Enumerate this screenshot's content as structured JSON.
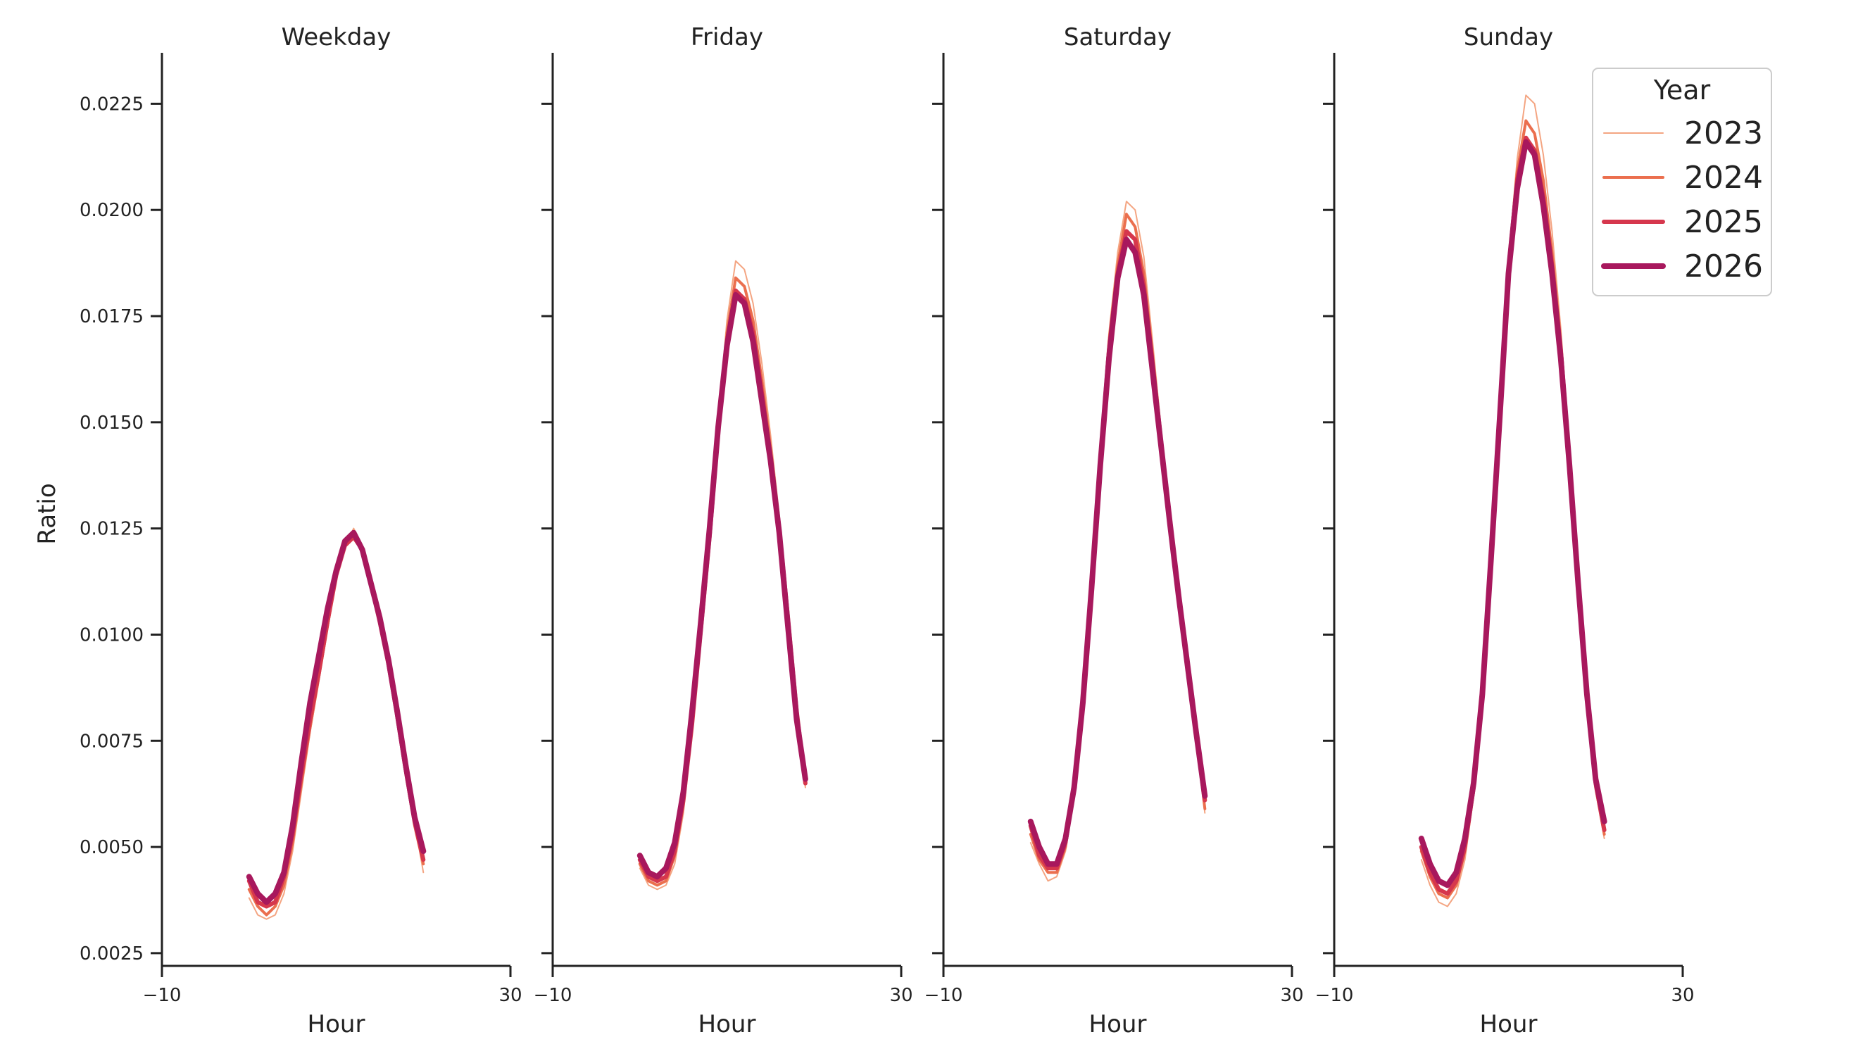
{
  "chart_data": {
    "type": "line",
    "ylabel": "Ratio",
    "xlabel": "Hour",
    "xlim": [
      -10,
      30
    ],
    "ylim": [
      0.0022,
      0.0237
    ],
    "xticks": [
      -10,
      30
    ],
    "yticks": [
      0.0025,
      0.005,
      0.0075,
      0.01,
      0.0125,
      0.015,
      0.0175,
      0.02,
      0.0225
    ],
    "ytick_labels": [
      "0.0025",
      "0.0050",
      "0.0075",
      "0.0100",
      "0.0125",
      "0.0150",
      "0.0175",
      "0.0200",
      "0.0225"
    ],
    "xtick_labels": [
      "−10",
      "30"
    ],
    "grid": false,
    "legend": {
      "title": "Year",
      "placement": "top-right",
      "entries": [
        "2023",
        "2024",
        "2025",
        "2026"
      ],
      "colors": [
        "#f4a582",
        "#eb6f4e",
        "#d6374d",
        "#a8185d"
      ],
      "widths": [
        2,
        4,
        6,
        8
      ]
    },
    "x": [
      0,
      1,
      2,
      3,
      4,
      5,
      6,
      7,
      8,
      9,
      10,
      11,
      12,
      13,
      14,
      15,
      16,
      17,
      18,
      19,
      20,
      21,
      22,
      23
    ],
    "panels": [
      {
        "title": "Weekday",
        "series": [
          {
            "name": "2023",
            "values": [
              0.0038,
              0.0034,
              0.0033,
              0.0034,
              0.0039,
              0.0049,
              0.0063,
              0.0077,
              0.0089,
              0.0101,
              0.0113,
              0.0121,
              0.0125,
              0.0121,
              0.0113,
              0.0104,
              0.0094,
              0.0081,
              0.0068,
              0.0056,
              0.0044
            ]
          },
          {
            "name": "2024",
            "values": [
              0.004,
              0.0036,
              0.0034,
              0.0036,
              0.0041,
              0.0051,
              0.0065,
              0.0078,
              0.009,
              0.0102,
              0.0114,
              0.0122,
              0.0124,
              0.012,
              0.0112,
              0.0103,
              0.0093,
              0.008,
              0.0067,
              0.0055,
              0.0046
            ]
          },
          {
            "name": "2025",
            "values": [
              0.0042,
              0.0037,
              0.0036,
              0.0037,
              0.0043,
              0.0053,
              0.0067,
              0.008,
              0.0091,
              0.0103,
              0.0114,
              0.0121,
              0.0123,
              0.012,
              0.0112,
              0.0103,
              0.0093,
              0.0081,
              0.0068,
              0.0056,
              0.0047
            ]
          },
          {
            "name": "2026",
            "values": [
              0.0043,
              0.0039,
              0.0037,
              0.0039,
              0.0044,
              0.0055,
              0.007,
              0.0084,
              0.0095,
              0.0106,
              0.0115,
              0.0122,
              0.0124,
              0.012,
              0.0112,
              0.0104,
              0.0094,
              0.0082,
              0.0069,
              0.0057,
              0.0049
            ]
          }
        ]
      },
      {
        "title": "Friday",
        "series": [
          {
            "name": "2023",
            "values": [
              0.0045,
              0.0041,
              0.004,
              0.0041,
              0.0046,
              0.0058,
              0.0077,
              0.01,
              0.0124,
              0.015,
              0.0174,
              0.0188,
              0.0186,
              0.0178,
              0.0164,
              0.0147,
              0.0128,
              0.0106,
              0.0083,
              0.0064
            ]
          },
          {
            "name": "2024",
            "values": [
              0.0046,
              0.0042,
              0.0041,
              0.0042,
              0.0048,
              0.006,
              0.0079,
              0.0101,
              0.0124,
              0.0149,
              0.0171,
              0.0184,
              0.0182,
              0.0174,
              0.016,
              0.0144,
              0.0126,
              0.0105,
              0.0082,
              0.0065
            ]
          },
          {
            "name": "2025",
            "values": [
              0.0047,
              0.0043,
              0.0042,
              0.0043,
              0.0049,
              0.0061,
              0.0079,
              0.0101,
              0.0123,
              0.0148,
              0.0169,
              0.0181,
              0.0179,
              0.0171,
              0.0157,
              0.0142,
              0.0125,
              0.0104,
              0.0082,
              0.0065
            ]
          },
          {
            "name": "2026",
            "values": [
              0.0048,
              0.0044,
              0.0043,
              0.0045,
              0.0051,
              0.0063,
              0.0082,
              0.0103,
              0.0125,
              0.0149,
              0.0168,
              0.018,
              0.0178,
              0.0169,
              0.0155,
              0.0141,
              0.0124,
              0.0102,
              0.008,
              0.0066
            ]
          }
        ]
      },
      {
        "title": "Saturday",
        "series": [
          {
            "name": "2023",
            "values": [
              0.0051,
              0.0046,
              0.0042,
              0.0043,
              0.0049,
              0.0062,
              0.0083,
              0.0112,
              0.0143,
              0.0171,
              0.019,
              0.0202,
              0.02,
              0.0189,
              0.0169,
              0.0148,
              0.0128,
              0.0109,
              0.0092,
              0.0076,
              0.0058
            ]
          },
          {
            "name": "2024",
            "values": [
              0.0053,
              0.0047,
              0.0044,
              0.0044,
              0.005,
              0.0063,
              0.0083,
              0.0112,
              0.0142,
              0.0169,
              0.0187,
              0.0199,
              0.0196,
              0.0185,
              0.0166,
              0.0146,
              0.0127,
              0.0109,
              0.0092,
              0.0076,
              0.0059
            ]
          },
          {
            "name": "2025",
            "values": [
              0.0055,
              0.0048,
              0.0045,
              0.0045,
              0.0051,
              0.0064,
              0.0084,
              0.0112,
              0.0141,
              0.0167,
              0.0185,
              0.0195,
              0.0193,
              0.0182,
              0.0164,
              0.0145,
              0.0127,
              0.0109,
              0.0092,
              0.0077,
              0.0061
            ]
          },
          {
            "name": "2026",
            "values": [
              0.0056,
              0.005,
              0.0046,
              0.0046,
              0.0052,
              0.0064,
              0.0084,
              0.0111,
              0.014,
              0.0165,
              0.0184,
              0.0193,
              0.019,
              0.018,
              0.0162,
              0.0144,
              0.0126,
              0.0109,
              0.0093,
              0.0077,
              0.0062
            ]
          }
        ]
      },
      {
        "title": "Sunday",
        "series": [
          {
            "name": "2023",
            "values": [
              0.0047,
              0.0041,
              0.0037,
              0.0036,
              0.0039,
              0.0047,
              0.0062,
              0.0085,
              0.0117,
              0.0153,
              0.0188,
              0.0212,
              0.0227,
              0.0225,
              0.0213,
              0.0195,
              0.0172,
              0.0144,
              0.0113,
              0.0085,
              0.0064,
              0.0052
            ]
          },
          {
            "name": "2024",
            "values": [
              0.0049,
              0.0043,
              0.0039,
              0.0038,
              0.0041,
              0.0049,
              0.0063,
              0.0085,
              0.0117,
              0.0152,
              0.0187,
              0.0209,
              0.0221,
              0.0218,
              0.0207,
              0.019,
              0.0169,
              0.0142,
              0.0112,
              0.0085,
              0.0064,
              0.0053
            ]
          },
          {
            "name": "2025",
            "values": [
              0.005,
              0.0044,
              0.004,
              0.0039,
              0.0042,
              0.005,
              0.0064,
              0.0085,
              0.0117,
              0.0151,
              0.0186,
              0.0207,
              0.0217,
              0.0214,
              0.0203,
              0.0187,
              0.0167,
              0.0141,
              0.0112,
              0.0085,
              0.0065,
              0.0054
            ]
          },
          {
            "name": "2026",
            "values": [
              0.0052,
              0.0046,
              0.0042,
              0.0041,
              0.0044,
              0.0052,
              0.0065,
              0.0086,
              0.0118,
              0.0151,
              0.0185,
              0.0205,
              0.0216,
              0.0213,
              0.0201,
              0.0185,
              0.0165,
              0.014,
              0.0112,
              0.0086,
              0.0066,
              0.0056
            ]
          }
        ]
      }
    ]
  }
}
